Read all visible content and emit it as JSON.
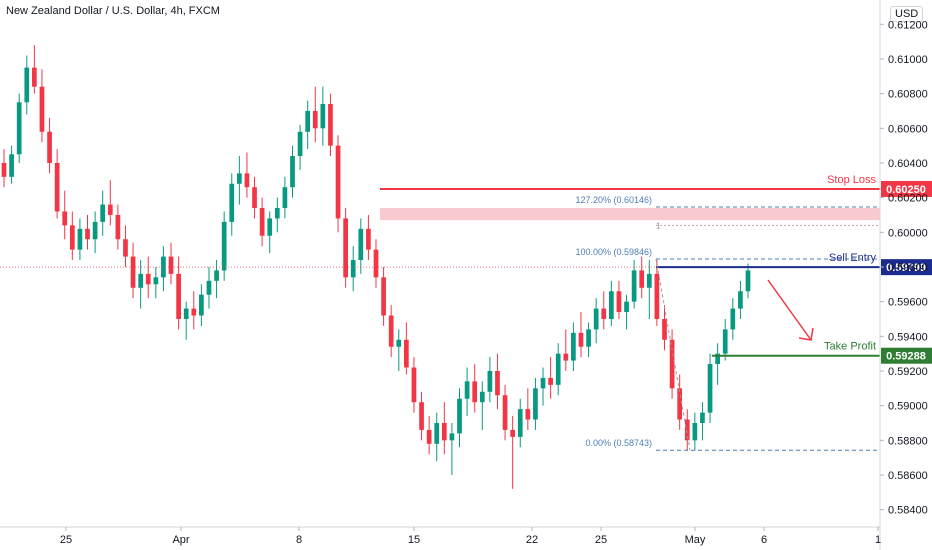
{
  "chart_data": {
    "type": "candlestick",
    "title": "New Zealand Dollar / U.S. Dollar, 4h, FXCM",
    "currency": "USD",
    "ylim": [
      0.583,
      0.6134
    ],
    "y_ticks": [
      "0.61200",
      "0.61000",
      "0.60800",
      "0.60600",
      "0.60400",
      "0.60200",
      "0.60000",
      "0.59800",
      "0.59600",
      "0.59400",
      "0.59200",
      "0.59000",
      "0.58800",
      "0.58600",
      "0.58400"
    ],
    "x_ticks": [
      "25",
      "Apr",
      "8",
      "15",
      "22",
      "25",
      "May",
      "6",
      "1"
    ],
    "colors": {
      "up": "#089981",
      "down": "#f23645",
      "stop": "#f23645",
      "entry": "#1c2b8f",
      "profit": "#2e7d32",
      "fib": "#4f7fb5"
    },
    "candles": [
      [
        0.604,
        0.6048,
        0.6026,
        0.6032
      ],
      [
        0.6032,
        0.605,
        0.6028,
        0.6045
      ],
      [
        0.6045,
        0.608,
        0.604,
        0.6075
      ],
      [
        0.6075,
        0.6102,
        0.6068,
        0.6095
      ],
      [
        0.6095,
        0.6108,
        0.608,
        0.6084
      ],
      [
        0.6084,
        0.6094,
        0.6052,
        0.6058
      ],
      [
        0.6058,
        0.6066,
        0.6034,
        0.604
      ],
      [
        0.604,
        0.6048,
        0.6008,
        0.6012
      ],
      [
        0.6012,
        0.6024,
        0.5996,
        0.6004
      ],
      [
        0.6004,
        0.6012,
        0.5984,
        0.599
      ],
      [
        0.599,
        0.6008,
        0.5984,
        0.6002
      ],
      [
        0.6002,
        0.601,
        0.599,
        0.5996
      ],
      [
        0.5996,
        0.6012,
        0.5988,
        0.6006
      ],
      [
        0.6006,
        0.6024,
        0.5998,
        0.6016
      ],
      [
        0.6016,
        0.603,
        0.6004,
        0.601
      ],
      [
        0.601,
        0.6016,
        0.599,
        0.5996
      ],
      [
        0.5996,
        0.6004,
        0.598,
        0.5986
      ],
      [
        0.5986,
        0.5994,
        0.5962,
        0.5968
      ],
      [
        0.5968,
        0.5984,
        0.5956,
        0.5976
      ],
      [
        0.5976,
        0.5986,
        0.5962,
        0.597
      ],
      [
        0.597,
        0.598,
        0.5962,
        0.5974
      ],
      [
        0.5974,
        0.5992,
        0.5966,
        0.5986
      ],
      [
        0.5986,
        0.5994,
        0.597,
        0.5976
      ],
      [
        0.5976,
        0.5986,
        0.5944,
        0.595
      ],
      [
        0.595,
        0.596,
        0.5938,
        0.5956
      ],
      [
        0.5956,
        0.5966,
        0.5944,
        0.5952
      ],
      [
        0.5952,
        0.597,
        0.5946,
        0.5964
      ],
      [
        0.5964,
        0.598,
        0.5956,
        0.5972
      ],
      [
        0.5972,
        0.5984,
        0.5962,
        0.5978
      ],
      [
        0.5978,
        0.6012,
        0.5972,
        0.6006
      ],
      [
        0.6006,
        0.6034,
        0.5998,
        0.6028
      ],
      [
        0.6028,
        0.6044,
        0.6016,
        0.6034
      ],
      [
        0.6034,
        0.6046,
        0.602,
        0.6026
      ],
      [
        0.6026,
        0.6032,
        0.6008,
        0.6014
      ],
      [
        0.6014,
        0.602,
        0.5992,
        0.5998
      ],
      [
        0.5998,
        0.6012,
        0.5988,
        0.6008
      ],
      [
        0.6008,
        0.602,
        0.6,
        0.6014
      ],
      [
        0.6014,
        0.6032,
        0.6008,
        0.6026
      ],
      [
        0.6026,
        0.605,
        0.602,
        0.6044
      ],
      [
        0.6044,
        0.6062,
        0.6036,
        0.6058
      ],
      [
        0.6058,
        0.6076,
        0.6048,
        0.607
      ],
      [
        0.607,
        0.6084,
        0.6052,
        0.606
      ],
      [
        0.606,
        0.6084,
        0.605,
        0.6074
      ],
      [
        0.6074,
        0.608,
        0.6044,
        0.605
      ],
      [
        0.605,
        0.6056,
        0.6,
        0.6008
      ],
      [
        0.6008,
        0.6014,
        0.5968,
        0.5974
      ],
      [
        0.5974,
        0.5992,
        0.5966,
        0.5984
      ],
      [
        0.5984,
        0.6008,
        0.5976,
        0.6002
      ],
      [
        0.6002,
        0.601,
        0.5984,
        0.599
      ],
      [
        0.599,
        0.5996,
        0.5968,
        0.5974
      ],
      [
        0.5974,
        0.598,
        0.5946,
        0.5952
      ],
      [
        0.5952,
        0.5958,
        0.5928,
        0.5934
      ],
      [
        0.5934,
        0.5944,
        0.592,
        0.5938
      ],
      [
        0.5938,
        0.5948,
        0.5918,
        0.5922
      ],
      [
        0.5922,
        0.5928,
        0.5896,
        0.5902
      ],
      [
        0.5902,
        0.5908,
        0.588,
        0.5886
      ],
      [
        0.5886,
        0.5894,
        0.5872,
        0.5878
      ],
      [
        0.5878,
        0.5896,
        0.5868,
        0.589
      ],
      [
        0.589,
        0.5902,
        0.5872,
        0.588
      ],
      [
        0.588,
        0.589,
        0.586,
        0.5884
      ],
      [
        0.5884,
        0.591,
        0.5876,
        0.5904
      ],
      [
        0.5904,
        0.5922,
        0.5894,
        0.5914
      ],
      [
        0.5914,
        0.5924,
        0.5896,
        0.5902
      ],
      [
        0.5902,
        0.5914,
        0.5886,
        0.5908
      ],
      [
        0.5908,
        0.5928,
        0.5902,
        0.592
      ],
      [
        0.592,
        0.593,
        0.5898,
        0.5906
      ],
      [
        0.5906,
        0.5912,
        0.588,
        0.5886
      ],
      [
        0.5886,
        0.5894,
        0.5852,
        0.5882
      ],
      [
        0.5882,
        0.5904,
        0.5876,
        0.5898
      ],
      [
        0.5898,
        0.591,
        0.5886,
        0.5892
      ],
      [
        0.5892,
        0.5916,
        0.5886,
        0.591
      ],
      [
        0.591,
        0.5922,
        0.59,
        0.5916
      ],
      [
        0.5916,
        0.5928,
        0.5904,
        0.5912
      ],
      [
        0.5912,
        0.5936,
        0.5906,
        0.593
      ],
      [
        0.593,
        0.5944,
        0.592,
        0.5926
      ],
      [
        0.5926,
        0.5948,
        0.592,
        0.5942
      ],
      [
        0.5942,
        0.5954,
        0.5928,
        0.5934
      ],
      [
        0.5934,
        0.5948,
        0.5928,
        0.5944
      ],
      [
        0.5944,
        0.5962,
        0.5936,
        0.5956
      ],
      [
        0.5956,
        0.5966,
        0.5944,
        0.595
      ],
      [
        0.595,
        0.5972,
        0.5946,
        0.5966
      ],
      [
        0.5966,
        0.5972,
        0.595,
        0.5954
      ],
      [
        0.5954,
        0.5964,
        0.5944,
        0.596
      ],
      [
        0.596,
        0.5984,
        0.5956,
        0.5978
      ],
      [
        0.5978,
        0.5986,
        0.5962,
        0.5968
      ],
      [
        0.5968,
        0.5984,
        0.595,
        0.5976
      ],
      [
        0.5976,
        0.5984,
        0.5946,
        0.595
      ],
      [
        0.595,
        0.5958,
        0.5932,
        0.5938
      ],
      [
        0.5938,
        0.5944,
        0.5904,
        0.591
      ],
      [
        0.591,
        0.5918,
        0.5886,
        0.5892
      ],
      [
        0.5892,
        0.5898,
        0.5874,
        0.588
      ],
      [
        0.588,
        0.5896,
        0.5874,
        0.589
      ],
      [
        0.589,
        0.5902,
        0.588,
        0.5896
      ],
      [
        0.5896,
        0.593,
        0.589,
        0.5924
      ],
      [
        0.5924,
        0.5936,
        0.5912,
        0.593
      ],
      [
        0.593,
        0.595,
        0.5926,
        0.5944
      ],
      [
        0.5944,
        0.5962,
        0.5938,
        0.5956
      ],
      [
        0.5956,
        0.5972,
        0.595,
        0.5966
      ],
      [
        0.5966,
        0.5982,
        0.5962,
        0.5978
      ]
    ],
    "levels": [
      {
        "name": "Stop Loss",
        "value": 0.6025,
        "label": "0.60250"
      },
      {
        "name": "Sell Entry",
        "value": 0.59799,
        "label": "0.59799"
      },
      {
        "name": "Take Profit",
        "value": 0.59288,
        "label": "0.59288"
      }
    ],
    "fib_levels": [
      {
        "label": "127.20% (0.60146)",
        "value": 0.60146
      },
      {
        "label": "100.00% (0.59846)",
        "value": 0.59846
      },
      {
        "label": "0.00% (0.58743)",
        "value": 0.58743
      }
    ],
    "fib_marker": "1",
    "zone": {
      "low": 0.6007,
      "high": 0.6014
    }
  }
}
